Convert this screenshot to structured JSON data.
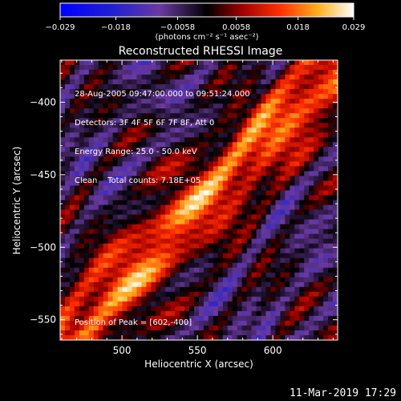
{
  "chart_data": {
    "type": "heatmap",
    "title": "Reconstructed RHESSI Image",
    "xlabel": "Heliocentric X (arcsec)",
    "ylabel": "Heliocentric Y (arcsec)",
    "xlim": [
      459,
      643
    ],
    "ylim": [
      -564,
      -371
    ],
    "x_ticks": [
      500,
      550,
      600
    ],
    "y_ticks": [
      -400,
      -450,
      -500,
      -550
    ],
    "colorbar": {
      "min": -0.029,
      "max": 0.029,
      "tick_labels": [
        "−0.029",
        "−0.018",
        "−0.0058",
        "0.0058",
        "0.018",
        "0.029"
      ],
      "tick_values": [
        -0.029,
        -0.018,
        -0.0058,
        0.0058,
        0.018,
        0.029
      ],
      "unit_label": "(photons cm⁻² s⁻¹ asec⁻²)"
    },
    "peak_position": [
      602,
      -400
    ],
    "annotations": [
      "28-Aug-2005 09:47:00.000 to 09:51:24.000",
      "Detectors: 3F 4F 5F 6F 7F 8F, Att 0",
      "Energy Range: 25.0 - 50.0 keV",
      "Clean    Total counts: 7.18E+05",
      "Position of Peak = [602,-400]"
    ]
  },
  "footer_timestamp": "11-Mar-2019 17:29"
}
